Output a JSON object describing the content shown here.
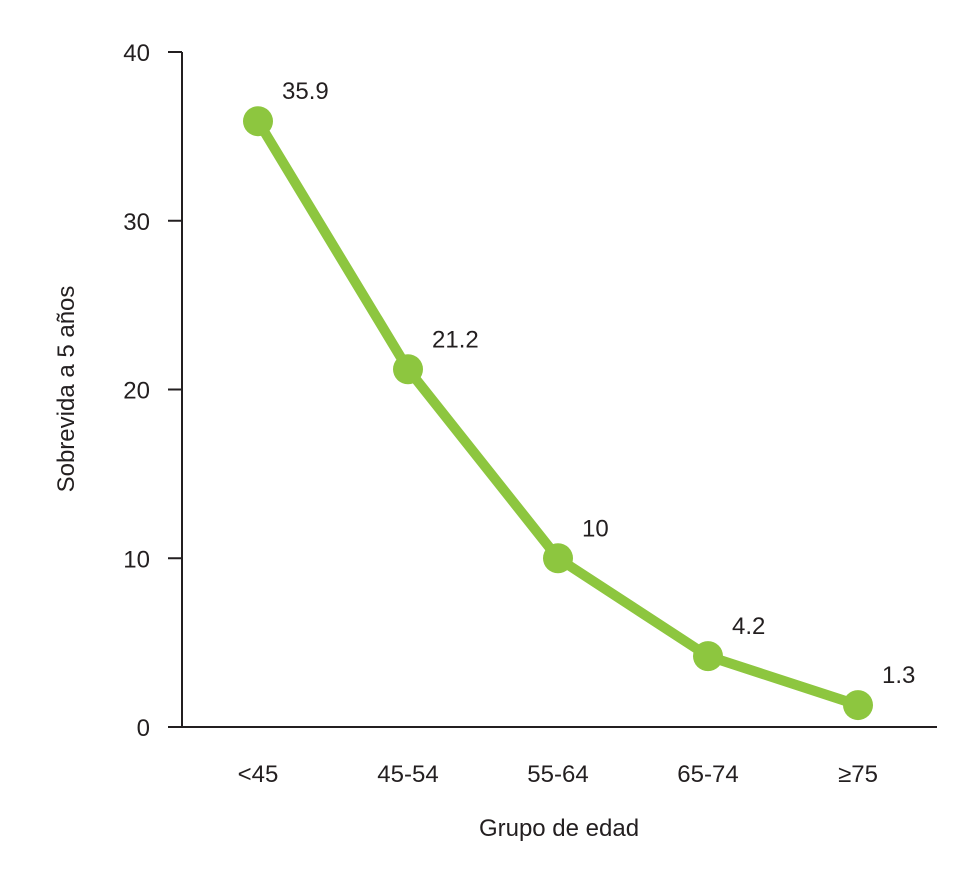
{
  "chart_data": {
    "type": "line",
    "title": "",
    "xlabel": "Grupo de edad",
    "ylabel": "Sobrevida a 5 años",
    "categories": [
      "<45",
      "45-54",
      "55-64",
      "65-74",
      "≥75"
    ],
    "series": [
      {
        "values": [
          35.9,
          21.2,
          10,
          4.2,
          1.3
        ],
        "labels": [
          "35.9",
          "21.2",
          "10",
          "4.2",
          "1.3"
        ]
      }
    ],
    "ylim": [
      0,
      40
    ],
    "yticks": [
      0,
      10,
      20,
      30,
      40
    ],
    "grid": false,
    "color": "#8dc63f"
  }
}
